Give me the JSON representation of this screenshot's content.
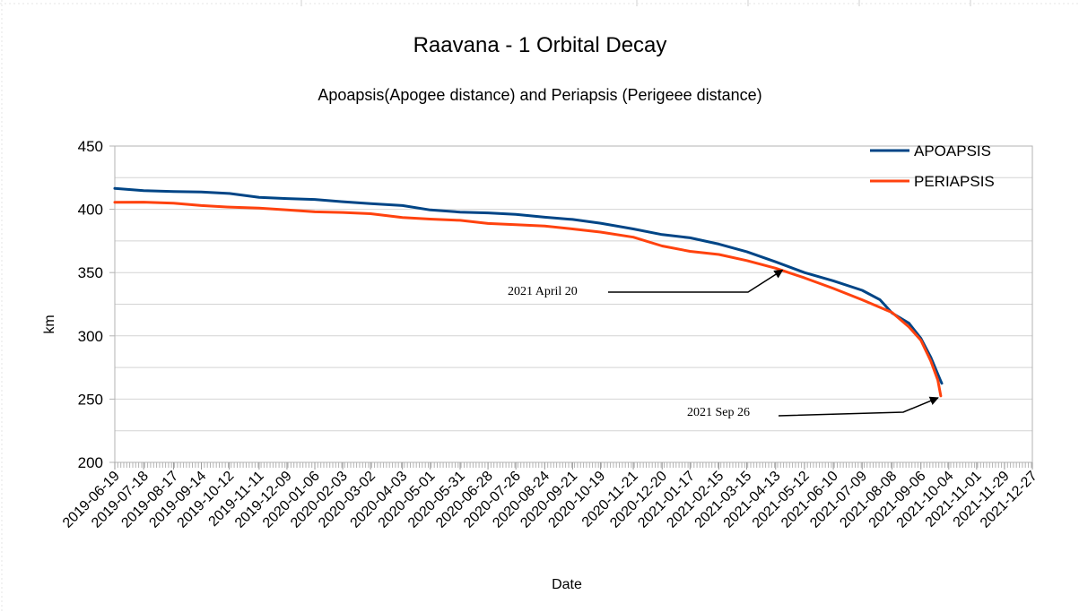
{
  "chart_data": {
    "type": "line",
    "title": "Raavana - 1 Orbital Decay",
    "subtitle": "Apoapsis(Apogee distance) and Periapsis (Perigeee distance)",
    "xlabel": "Date",
    "ylabel": "km",
    "ylim": [
      200,
      450
    ],
    "yticks": [
      200,
      250,
      300,
      350,
      400,
      450
    ],
    "xlim": [
      "2019-06-19",
      "2021-12-27"
    ],
    "x_tick_labels": [
      "2019-06-19",
      "2019-07-18",
      "2019-08-17",
      "2019-09-14",
      "2019-10-12",
      "2019-11-11",
      "2019-12-09",
      "2020-01-06",
      "2020-02-03",
      "2020-03-02",
      "2020-04-03",
      "2020-05-01",
      "2020-05-31",
      "2020-06-28",
      "2020-07-26",
      "2020-08-24",
      "2020-09-21",
      "2020-10-19",
      "2020-11-21",
      "2020-12-20",
      "2021-01-17",
      "2021-02-15",
      "2021-03-15",
      "2021-04-13",
      "2021-05-12",
      "2021-06-10",
      "2021-07-09",
      "2021-08-08",
      "2021-09-06",
      "2021-10-04",
      "2021-11-01",
      "2021-11-29",
      "2021-12-27"
    ],
    "grid": true,
    "legend_position": "top-right",
    "series": [
      {
        "name": "APOAPSIS",
        "color": "#004586",
        "points": [
          [
            "2019-06-19",
            416.5
          ],
          [
            "2019-07-18",
            414.8
          ],
          [
            "2019-08-17",
            414.0
          ],
          [
            "2019-09-14",
            413.7
          ],
          [
            "2019-10-12",
            412.5
          ],
          [
            "2019-11-11",
            409.5
          ],
          [
            "2019-12-09",
            408.5
          ],
          [
            "2020-01-06",
            407.8
          ],
          [
            "2020-02-03",
            406.0
          ],
          [
            "2020-03-02",
            404.5
          ],
          [
            "2020-04-03",
            403.0
          ],
          [
            "2020-05-01",
            399.5
          ],
          [
            "2020-05-31",
            397.8
          ],
          [
            "2020-06-28",
            397.2
          ],
          [
            "2020-07-26",
            396.0
          ],
          [
            "2020-08-24",
            393.8
          ],
          [
            "2020-09-21",
            392.0
          ],
          [
            "2020-10-19",
            389.0
          ],
          [
            "2020-11-21",
            384.5
          ],
          [
            "2020-12-20",
            380.0
          ],
          [
            "2021-01-17",
            377.5
          ],
          [
            "2021-02-15",
            372.5
          ],
          [
            "2021-03-15",
            366.5
          ],
          [
            "2021-04-13",
            358.5
          ],
          [
            "2021-05-12",
            350.0
          ],
          [
            "2021-06-10",
            343.5
          ],
          [
            "2021-07-09",
            336.0
          ],
          [
            "2021-07-27",
            328.5
          ],
          [
            "2021-08-08",
            318.0
          ],
          [
            "2021-08-25",
            310.0
          ],
          [
            "2021-09-06",
            298.0
          ],
          [
            "2021-09-16",
            283.0
          ],
          [
            "2021-09-25",
            266.0
          ],
          [
            "2021-09-27",
            262.5
          ]
        ]
      },
      {
        "name": "PERIAPSIS",
        "color": "#ff420e",
        "points": [
          [
            "2019-06-19",
            405.5
          ],
          [
            "2019-07-18",
            405.7
          ],
          [
            "2019-08-17",
            404.8
          ],
          [
            "2019-09-14",
            403.0
          ],
          [
            "2019-10-12",
            401.8
          ],
          [
            "2019-11-11",
            401.0
          ],
          [
            "2019-12-09",
            399.5
          ],
          [
            "2020-01-06",
            398.0
          ],
          [
            "2020-02-03",
            397.5
          ],
          [
            "2020-03-02",
            396.5
          ],
          [
            "2020-04-03",
            393.5
          ],
          [
            "2020-05-01",
            392.3
          ],
          [
            "2020-05-31",
            391.3
          ],
          [
            "2020-06-28",
            388.8
          ],
          [
            "2020-07-26",
            387.8
          ],
          [
            "2020-08-24",
            386.8
          ],
          [
            "2020-09-21",
            384.5
          ],
          [
            "2020-10-19",
            382.0
          ],
          [
            "2020-11-21",
            378.0
          ],
          [
            "2020-12-20",
            371.0
          ],
          [
            "2021-01-17",
            366.8
          ],
          [
            "2021-02-15",
            364.3
          ],
          [
            "2021-03-15",
            359.5
          ],
          [
            "2021-04-13",
            353.5
          ],
          [
            "2021-05-12",
            345.8
          ],
          [
            "2021-06-10",
            337.5
          ],
          [
            "2021-07-09",
            328.5
          ],
          [
            "2021-08-08",
            318.5
          ],
          [
            "2021-08-25",
            307.0
          ],
          [
            "2021-09-06",
            296.5
          ],
          [
            "2021-09-16",
            280.0
          ],
          [
            "2021-09-23",
            265.0
          ],
          [
            "2021-09-26",
            252.5
          ]
        ]
      }
    ],
    "annotations": [
      {
        "text": "2021  April  20",
        "date": "2021-04-20",
        "value": 352
      },
      {
        "text": "2021   Sep   26",
        "date": "2021-09-26",
        "value": 252.5
      }
    ]
  }
}
